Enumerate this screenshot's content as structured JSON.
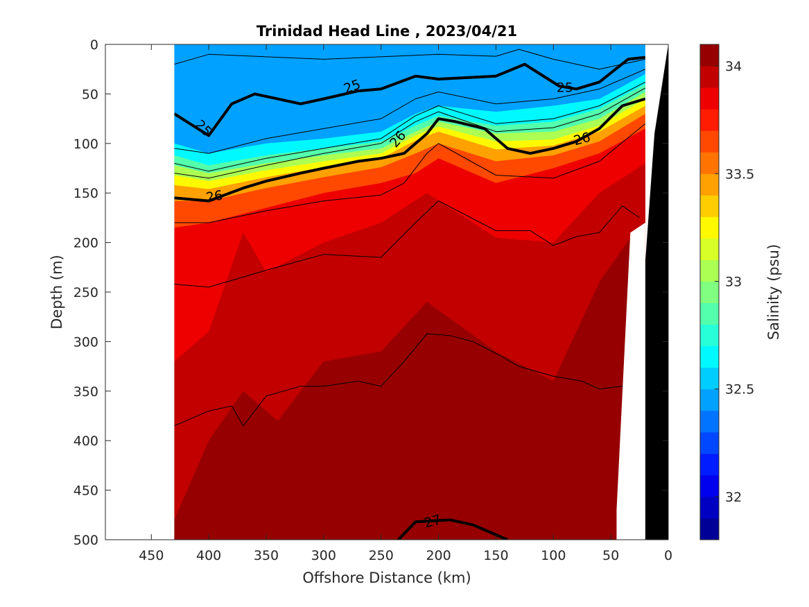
{
  "chart_data": {
    "type": "heatmap",
    "subtype": "filled-contour section",
    "title": "Trinidad Head Line , 2023/04/21",
    "xlabel": "Offshore Distance (km)",
    "ylabel": "Depth (m)",
    "xlim": [
      490,
      0
    ],
    "ylim": [
      500,
      0
    ],
    "x_reversed": true,
    "y_reversed": true,
    "x_ticks": [
      450,
      400,
      350,
      300,
      250,
      200,
      150,
      100,
      50,
      0
    ],
    "y_ticks": [
      0,
      50,
      100,
      150,
      200,
      250,
      300,
      350,
      400,
      450,
      500
    ],
    "colorbar": {
      "label": "Salinity (psu)",
      "min": 31.8,
      "max": 34.1,
      "step": 0.1,
      "ticks": [
        32,
        32.5,
        33,
        33.5,
        34
      ],
      "colormap": "jet"
    },
    "data_extent_km": [
      430,
      20
    ],
    "bottom_fill_color": "#000000",
    "salinity_surfaces_depth_m": [
      {
        "salinity": 32.6,
        "points": [
          [
            430,
            100
          ],
          [
            400,
            110
          ],
          [
            350,
            100
          ],
          [
            300,
            95
          ],
          [
            250,
            88
          ],
          [
            220,
            70
          ],
          [
            200,
            62
          ],
          [
            150,
            68
          ],
          [
            100,
            62
          ],
          [
            60,
            55
          ],
          [
            20,
            30
          ]
        ]
      },
      {
        "salinity": 32.8,
        "points": [
          [
            430,
            112
          ],
          [
            400,
            122
          ],
          [
            350,
            112
          ],
          [
            300,
            105
          ],
          [
            250,
            98
          ],
          [
            220,
            82
          ],
          [
            200,
            72
          ],
          [
            150,
            82
          ],
          [
            100,
            78
          ],
          [
            60,
            65
          ],
          [
            20,
            40
          ]
        ]
      },
      {
        "salinity": 33.0,
        "points": [
          [
            430,
            122
          ],
          [
            400,
            130
          ],
          [
            350,
            120
          ],
          [
            300,
            112
          ],
          [
            250,
            105
          ],
          [
            220,
            88
          ],
          [
            200,
            78
          ],
          [
            150,
            90
          ],
          [
            100,
            88
          ],
          [
            60,
            75
          ],
          [
            20,
            48
          ]
        ]
      },
      {
        "salinity": 33.2,
        "points": [
          [
            430,
            132
          ],
          [
            400,
            138
          ],
          [
            350,
            127
          ],
          [
            300,
            118
          ],
          [
            250,
            110
          ],
          [
            220,
            92
          ],
          [
            200,
            83
          ],
          [
            150,
            98
          ],
          [
            100,
            96
          ],
          [
            60,
            82
          ],
          [
            20,
            55
          ]
        ]
      },
      {
        "salinity": 33.4,
        "points": [
          [
            430,
            142
          ],
          [
            400,
            146
          ],
          [
            350,
            134
          ],
          [
            300,
            124
          ],
          [
            250,
            115
          ],
          [
            220,
            97
          ],
          [
            200,
            88
          ],
          [
            150,
            106
          ],
          [
            100,
            102
          ],
          [
            60,
            88
          ],
          [
            20,
            62
          ]
        ]
      },
      {
        "salinity": 33.6,
        "points": [
          [
            430,
            158
          ],
          [
            400,
            158
          ],
          [
            350,
            145
          ],
          [
            300,
            134
          ],
          [
            250,
            124
          ],
          [
            220,
            110
          ],
          [
            200,
            100
          ],
          [
            150,
            118
          ],
          [
            100,
            112
          ],
          [
            60,
            98
          ],
          [
            20,
            70
          ]
        ]
      },
      {
        "salinity": 33.8,
        "points": [
          [
            430,
            185
          ],
          [
            400,
            180
          ],
          [
            350,
            165
          ],
          [
            300,
            150
          ],
          [
            250,
            140
          ],
          [
            220,
            130
          ],
          [
            200,
            115
          ],
          [
            150,
            140
          ],
          [
            100,
            125
          ],
          [
            60,
            110
          ],
          [
            20,
            85
          ]
        ]
      },
      {
        "salinity": 33.9,
        "points": [
          [
            430,
            320
          ],
          [
            400,
            290
          ],
          [
            370,
            190
          ],
          [
            350,
            230
          ],
          [
            300,
            200
          ],
          [
            250,
            180
          ],
          [
            210,
            150
          ],
          [
            150,
            195
          ],
          [
            100,
            200
          ],
          [
            60,
            150
          ],
          [
            20,
            120
          ]
        ]
      },
      {
        "salinity": 34.0,
        "points": [
          [
            430,
            480
          ],
          [
            400,
            400
          ],
          [
            370,
            350
          ],
          [
            340,
            380
          ],
          [
            300,
            320
          ],
          [
            250,
            310
          ],
          [
            210,
            260
          ],
          [
            150,
            310
          ],
          [
            100,
            340
          ],
          [
            60,
            240
          ],
          [
            30,
            190
          ]
        ]
      }
    ],
    "sigma_theta_contours": [
      {
        "level": 24.5,
        "bold": false,
        "points": [
          [
            430,
            20
          ],
          [
            400,
            10
          ],
          [
            300,
            15
          ],
          [
            200,
            10
          ],
          [
            150,
            12
          ],
          [
            130,
            5
          ],
          [
            100,
            15
          ],
          [
            60,
            25
          ],
          [
            20,
            15
          ]
        ]
      },
      {
        "level": 25,
        "bold": true,
        "points": [
          [
            430,
            70
          ],
          [
            400,
            92
          ],
          [
            380,
            60
          ],
          [
            360,
            50
          ],
          [
            320,
            60
          ],
          [
            300,
            55
          ],
          [
            270,
            47
          ],
          [
            250,
            45
          ],
          [
            220,
            32
          ],
          [
            200,
            35
          ],
          [
            150,
            32
          ],
          [
            125,
            20
          ],
          [
            95,
            42
          ],
          [
            80,
            45
          ],
          [
            60,
            38
          ],
          [
            35,
            15
          ],
          [
            20,
            13
          ]
        ]
      },
      {
        "level": 25.2,
        "bold": false,
        "points": [
          [
            430,
            105
          ],
          [
            400,
            110
          ],
          [
            350,
            95
          ],
          [
            300,
            85
          ],
          [
            250,
            75
          ],
          [
            220,
            55
          ],
          [
            200,
            48
          ],
          [
            150,
            60
          ],
          [
            100,
            55
          ],
          [
            60,
            45
          ],
          [
            20,
            25
          ]
        ]
      },
      {
        "level": 25.4,
        "bold": false,
        "points": [
          [
            430,
            120
          ],
          [
            400,
            128
          ],
          [
            350,
            115
          ],
          [
            300,
            105
          ],
          [
            250,
            95
          ],
          [
            220,
            72
          ],
          [
            200,
            62
          ],
          [
            150,
            80
          ],
          [
            100,
            75
          ],
          [
            60,
            62
          ],
          [
            20,
            38
          ]
        ]
      },
      {
        "level": 25.6,
        "bold": false,
        "points": [
          [
            430,
            130
          ],
          [
            400,
            135
          ],
          [
            350,
            122
          ],
          [
            300,
            110
          ],
          [
            250,
            100
          ],
          [
            220,
            78
          ],
          [
            200,
            68
          ],
          [
            150,
            88
          ],
          [
            100,
            84
          ],
          [
            60,
            70
          ],
          [
            20,
            44
          ]
        ]
      },
      {
        "level": 26,
        "bold": true,
        "points": [
          [
            430,
            155
          ],
          [
            400,
            158
          ],
          [
            370,
            145
          ],
          [
            350,
            138
          ],
          [
            320,
            130
          ],
          [
            300,
            125
          ],
          [
            270,
            118
          ],
          [
            250,
            115
          ],
          [
            230,
            110
          ],
          [
            210,
            90
          ],
          [
            200,
            75
          ],
          [
            185,
            78
          ],
          [
            160,
            85
          ],
          [
            140,
            105
          ],
          [
            120,
            110
          ],
          [
            100,
            105
          ],
          [
            80,
            98
          ],
          [
            60,
            85
          ],
          [
            40,
            62
          ],
          [
            20,
            55
          ]
        ]
      },
      {
        "level": 26.2,
        "bold": false,
        "points": [
          [
            430,
            180
          ],
          [
            400,
            180
          ],
          [
            350,
            168
          ],
          [
            300,
            158
          ],
          [
            250,
            152
          ],
          [
            230,
            140
          ],
          [
            210,
            110
          ],
          [
            200,
            100
          ],
          [
            150,
            132
          ],
          [
            100,
            135
          ],
          [
            60,
            118
          ],
          [
            20,
            80
          ]
        ]
      },
      {
        "level": 26.4,
        "bold": false,
        "points": [
          [
            430,
            242
          ],
          [
            400,
            245
          ],
          [
            350,
            228
          ],
          [
            300,
            212
          ],
          [
            250,
            215
          ],
          [
            220,
            180
          ],
          [
            200,
            158
          ],
          [
            150,
            188
          ],
          [
            120,
            188
          ],
          [
            100,
            203
          ],
          [
            80,
            194
          ],
          [
            60,
            190
          ],
          [
            40,
            163
          ],
          [
            25,
            175
          ]
        ]
      },
      {
        "level": 26.6,
        "bold": false,
        "points": [
          [
            430,
            385
          ],
          [
            400,
            370
          ],
          [
            380,
            365
          ],
          [
            370,
            385
          ],
          [
            350,
            355
          ],
          [
            320,
            345
          ],
          [
            300,
            345
          ],
          [
            270,
            340
          ],
          [
            250,
            345
          ],
          [
            230,
            320
          ],
          [
            210,
            292
          ],
          [
            190,
            294
          ],
          [
            170,
            300
          ],
          [
            150,
            312
          ],
          [
            130,
            325
          ],
          [
            100,
            335
          ],
          [
            75,
            340
          ],
          [
            60,
            348
          ],
          [
            40,
            345
          ],
          [
            30,
            338
          ],
          [
            20,
            350
          ]
        ]
      },
      {
        "level": 27,
        "bold": true,
        "points": [
          [
            235,
            500
          ],
          [
            220,
            482
          ],
          [
            190,
            480
          ],
          [
            170,
            485
          ],
          [
            140,
            500
          ]
        ]
      }
    ],
    "contour_labels": [
      {
        "text": "25",
        "x": 275,
        "y": 43,
        "angle": -20
      },
      {
        "text": "25",
        "x": 90,
        "y": 44,
        "angle": 0
      },
      {
        "text": "25",
        "x": 405,
        "y": 85,
        "angle": 45
      },
      {
        "text": "26",
        "x": 395,
        "y": 154,
        "angle": -10
      },
      {
        "text": "26",
        "x": 235,
        "y": 96,
        "angle": -50
      },
      {
        "text": "26",
        "x": 75,
        "y": 96,
        "angle": -15
      },
      {
        "text": "27",
        "x": 205,
        "y": 482,
        "angle": -15
      }
    ]
  }
}
